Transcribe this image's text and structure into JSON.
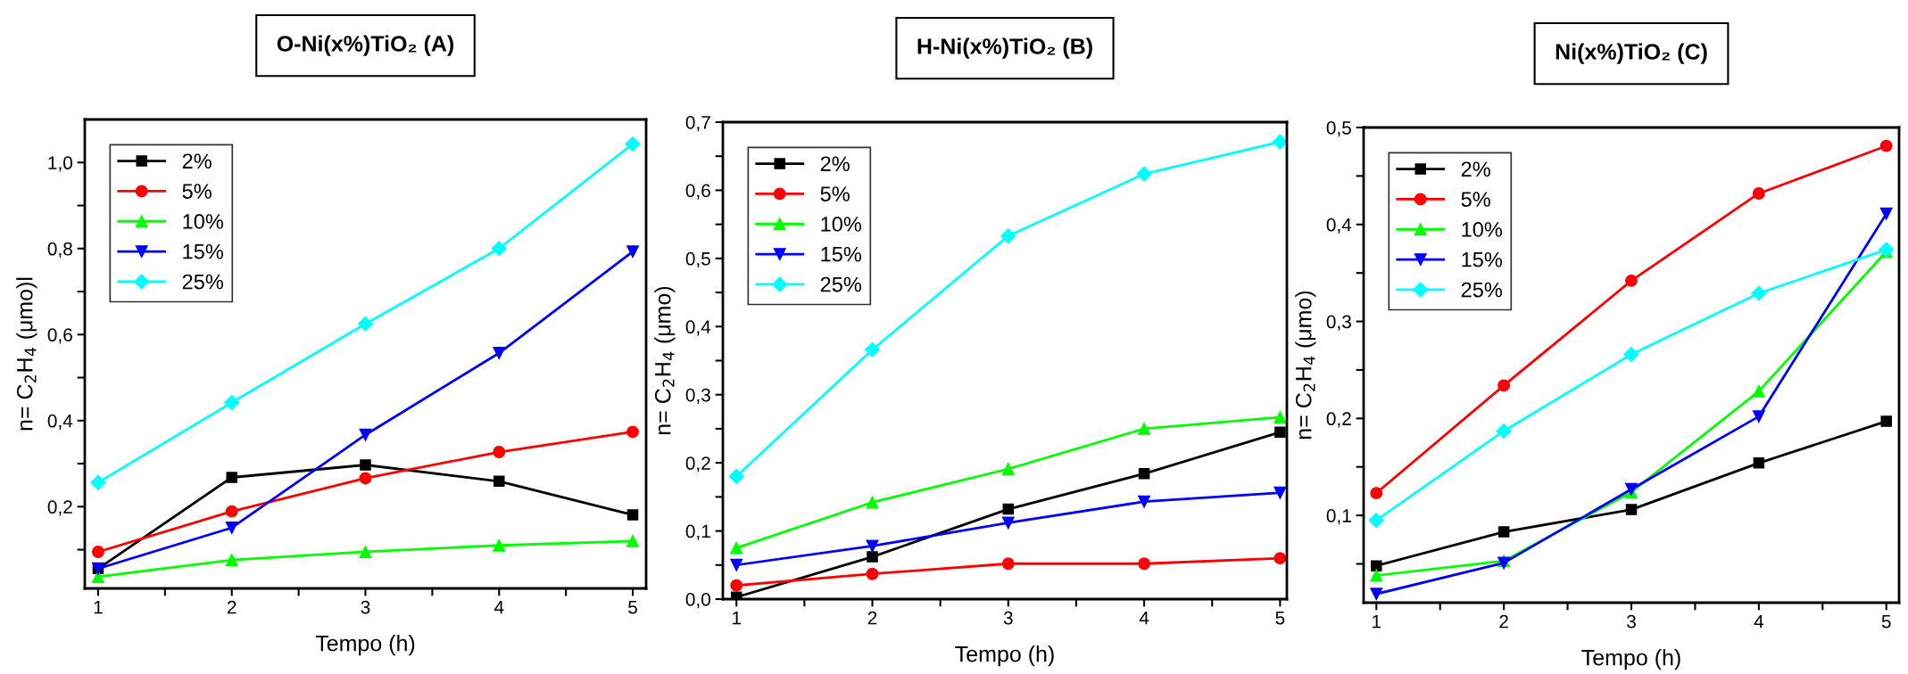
{
  "chart_data": [
    {
      "type": "line",
      "title": "O-Ni(x%)TiO₂ (A)",
      "xlabel": "Tempo (h)",
      "ylabel": "n= C$_{2}$H$_{4}$ (μmo)l",
      "x": [
        1,
        2,
        3,
        4,
        5
      ],
      "xlim": [
        0.9,
        5.1
      ],
      "ylim": [
        0.01,
        1.1
      ],
      "xticks": [
        1,
        {
          "value": 1.5,
          "label": null
        },
        2,
        {
          "value": 2.5,
          "label": null
        },
        3,
        {
          "value": 3.5,
          "label": null
        },
        4,
        {
          "value": 4.5,
          "label": null
        },
        5
      ],
      "yticks": [
        {
          "value": 0.1,
          "label": null
        },
        {
          "value": 0.2,
          "label": "0,2"
        },
        {
          "value": 0.3,
          "label": null
        },
        {
          "value": 0.4,
          "label": "0,4"
        },
        {
          "value": 0.5,
          "label": null
        },
        {
          "value": 0.6,
          "label": "0,6"
        },
        {
          "value": 0.7,
          "label": null
        },
        {
          "value": 0.8,
          "label": "0,8"
        },
        {
          "value": 0.9,
          "label": null
        },
        {
          "value": 1.0,
          "label": "1,0"
        }
      ],
      "legend": "top left",
      "grid": false,
      "series": [
        {
          "name": "2%",
          "color": "#000000",
          "marker": "square",
          "values": [
            0.056,
            0.268,
            0.297,
            0.259,
            0.181
          ]
        },
        {
          "name": "5%",
          "color": "#ff0000",
          "marker": "circle",
          "values": [
            0.095,
            0.189,
            0.266,
            0.327,
            0.374
          ]
        },
        {
          "name": "10%",
          "color": "#00ff00",
          "marker": "triangle",
          "values": [
            0.037,
            0.076,
            0.095,
            0.11,
            0.12
          ]
        },
        {
          "name": "15%",
          "color": "#0000ff",
          "marker": "triangle_down",
          "values": [
            0.056,
            0.151,
            0.367,
            0.557,
            0.793
          ]
        },
        {
          "name": "25%",
          "color": "#00ffff",
          "marker": "diamond",
          "values": [
            0.256,
            0.442,
            0.625,
            0.8,
            1.043
          ]
        }
      ]
    },
    {
      "type": "line",
      "title": "H-Ni(x%)TiO₂ (B)",
      "xlabel": "Tempo (h)",
      "ylabel": "n= C$_{2}$H$_{4}$ (μmo)",
      "x": [
        1,
        2,
        3,
        4,
        5
      ],
      "xlim": [
        0.9,
        5.05
      ],
      "ylim": [
        0.0,
        0.7
      ],
      "xticks": [
        1,
        {
          "value": 1.5,
          "label": null
        },
        2,
        {
          "value": 2.5,
          "label": null
        },
        3,
        {
          "value": 3.5,
          "label": null
        },
        4,
        {
          "value": 4.5,
          "label": null
        },
        5
      ],
      "yticks": [
        {
          "value": 0.0,
          "label": "0,0"
        },
        {
          "value": 0.05,
          "label": null
        },
        {
          "value": 0.1,
          "label": "0,1"
        },
        {
          "value": 0.15,
          "label": null
        },
        {
          "value": 0.2,
          "label": "0,2"
        },
        {
          "value": 0.25,
          "label": null
        },
        {
          "value": 0.3,
          "label": "0,3"
        },
        {
          "value": 0.35,
          "label": null
        },
        {
          "value": 0.4,
          "label": "0,4"
        },
        {
          "value": 0.45,
          "label": null
        },
        {
          "value": 0.5,
          "label": "0,5"
        },
        {
          "value": 0.55,
          "label": null
        },
        {
          "value": 0.6,
          "label": "0,6"
        },
        {
          "value": 0.65,
          "label": null
        },
        {
          "value": 0.7,
          "label": "0,7"
        }
      ],
      "legend": "top left",
      "grid": false,
      "series": [
        {
          "name": "2%",
          "color": "#000000",
          "marker": "square",
          "values": [
            0.003,
            0.062,
            0.132,
            0.184,
            0.245
          ]
        },
        {
          "name": "5%",
          "color": "#ff0000",
          "marker": "circle",
          "values": [
            0.02,
            0.037,
            0.052,
            0.052,
            0.06
          ]
        },
        {
          "name": "10%",
          "color": "#00ff00",
          "marker": "triangle",
          "values": [
            0.075,
            0.142,
            0.191,
            0.25,
            0.267
          ]
        },
        {
          "name": "15%",
          "color": "#0000ff",
          "marker": "triangle_down",
          "values": [
            0.05,
            0.078,
            0.112,
            0.143,
            0.156
          ]
        },
        {
          "name": "25%",
          "color": "#00ffff",
          "marker": "diamond",
          "values": [
            0.18,
            0.366,
            0.533,
            0.624,
            0.671
          ]
        }
      ]
    },
    {
      "type": "line",
      "title": "Ni(x%)TiO₂ (C)",
      "xlabel": "Tempo (h)",
      "ylabel": "n= C$_{2}$H$_{4}$ (μmo)",
      "x": [
        1,
        2,
        3,
        4,
        5
      ],
      "xlim": [
        0.9,
        5.1
      ],
      "ylim": [
        0.01,
        0.5
      ],
      "xticks": [
        1,
        {
          "value": 1.5,
          "label": null
        },
        2,
        {
          "value": 2.5,
          "label": null
        },
        3,
        {
          "value": 3.5,
          "label": null
        },
        4,
        {
          "value": 4.5,
          "label": null
        },
        5
      ],
      "yticks": [
        {
          "value": 0.05,
          "label": null
        },
        {
          "value": 0.1,
          "label": "0,1"
        },
        {
          "value": 0.15,
          "label": null
        },
        {
          "value": 0.2,
          "label": "0,2"
        },
        {
          "value": 0.25,
          "label": null
        },
        {
          "value": 0.3,
          "label": "0,3"
        },
        {
          "value": 0.35,
          "label": null
        },
        {
          "value": 0.4,
          "label": "0,4"
        },
        {
          "value": 0.45,
          "label": null
        },
        {
          "value": 0.5,
          "label": "0,5"
        }
      ],
      "legend": "top left",
      "grid": false,
      "series": [
        {
          "name": "2%",
          "color": "#000000",
          "marker": "square",
          "values": [
            0.048,
            0.083,
            0.106,
            0.154,
            0.197
          ]
        },
        {
          "name": "5%",
          "color": "#ff0000",
          "marker": "circle",
          "values": [
            0.123,
            0.234,
            0.342,
            0.432,
            0.481
          ]
        },
        {
          "name": "10%",
          "color": "#00ff00",
          "marker": "triangle",
          "values": [
            0.038,
            0.053,
            0.124,
            0.228,
            0.372
          ]
        },
        {
          "name": "15%",
          "color": "#0000ff",
          "marker": "triangle_down",
          "values": [
            0.019,
            0.051,
            0.127,
            0.202,
            0.411
          ]
        },
        {
          "name": "25%",
          "color": "#00ffff",
          "marker": "diamond",
          "values": [
            0.095,
            0.187,
            0.266,
            0.329,
            0.374
          ]
        }
      ]
    }
  ]
}
